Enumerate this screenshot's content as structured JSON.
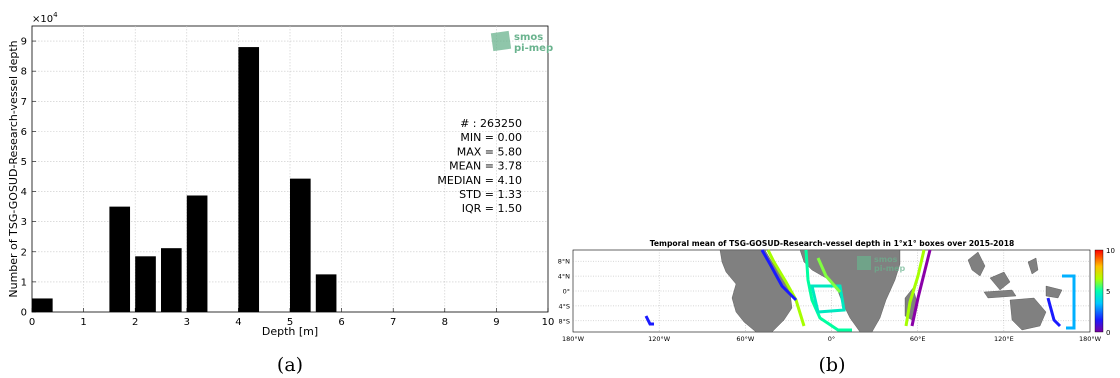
{
  "chart_data": [
    {
      "type": "bar",
      "panel_label": "(a)",
      "xlabel": "Depth [m]",
      "ylabel": "Number of TSG-GOSUD-Research-vessel depth",
      "y_multiplier": "×10",
      "y_multiplier_exp": "4",
      "xlim": [
        0,
        10
      ],
      "ylim": [
        0,
        95000
      ],
      "x_ticks": [
        "0",
        "1",
        "2",
        "3",
        "4",
        "5",
        "6",
        "7",
        "8",
        "9",
        "10"
      ],
      "y_ticks": [
        "0",
        "1",
        "2",
        "3",
        "4",
        "5",
        "6",
        "7",
        "8",
        "9"
      ],
      "bin_width": 0.4,
      "bins": [
        {
          "x": 0.2,
          "value": 4500
        },
        {
          "x": 1.7,
          "value": 35000
        },
        {
          "x": 2.2,
          "value": 18500
        },
        {
          "x": 2.7,
          "value": 21200
        },
        {
          "x": 3.2,
          "value": 38700
        },
        {
          "x": 4.2,
          "value": 88000
        },
        {
          "x": 5.2,
          "value": 44300
        },
        {
          "x": 5.7,
          "value": 12500
        }
      ],
      "stats": [
        "# : 263250",
        "MIN = 0.00",
        "MAX =  5.80",
        "MEAN = 3.78",
        "MEDIAN = 4.10",
        "STD = 1.33",
        "IQR = 1.50"
      ],
      "logo": {
        "line1": "smos",
        "line2": "pi-mep",
        "color": "#6ab38e"
      }
    },
    {
      "type": "heatmap",
      "panel_label": "(b)",
      "title": "Temporal mean of TSG-GOSUD-Research-vessel depth in 1°x1° boxes over 2015-2018",
      "x_ticks": [
        "180°W",
        "120°W",
        "60°W",
        "0°",
        "60°E",
        "120°E",
        "180°W"
      ],
      "y_ticks": [
        "8°N",
        "4°N",
        "0°",
        "4°S",
        "8°S"
      ],
      "colorbar_ticks": [
        "10",
        "5",
        "0"
      ],
      "clim": [
        0,
        10
      ],
      "land_color": "#808080",
      "logo": {
        "line1": "smos",
        "line2": "pi-mep",
        "color": "#6ab38e"
      }
    }
  ]
}
